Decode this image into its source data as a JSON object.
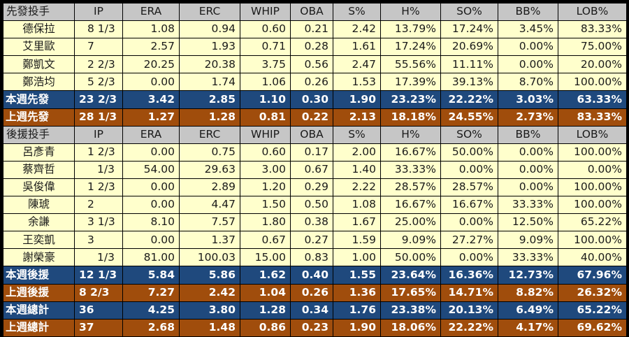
{
  "columns": [
    "IP",
    "ERA",
    "ERC",
    "WHIP",
    "OBA",
    "S%",
    "H%",
    "SO%",
    "BB%",
    "LOB%"
  ],
  "starters": {
    "header": "先發投手",
    "rows": [
      {
        "name": "德保拉",
        "ip": "8 1/3",
        "era": "1.08",
        "erc": "0.94",
        "whip": "0.60",
        "oba": "0.21",
        "s": "2.42",
        "h": "13.79%",
        "so": "17.24%",
        "bb": "3.45%",
        "lob": "83.33%"
      },
      {
        "name": "艾里歐",
        "ip": "7",
        "era": "2.57",
        "erc": "1.93",
        "whip": "0.71",
        "oba": "0.28",
        "s": "1.61",
        "h": "17.24%",
        "so": "20.69%",
        "bb": "0.00%",
        "lob": "75.00%"
      },
      {
        "name": "鄭凱文",
        "ip": "2 2/3",
        "era": "20.25",
        "erc": "20.38",
        "whip": "3.75",
        "oba": "0.56",
        "s": "2.47",
        "h": "55.56%",
        "so": "11.11%",
        "bb": "0.00%",
        "lob": "20.00%"
      },
      {
        "name": "鄭浩均",
        "ip": "5 2/3",
        "era": "0.00",
        "erc": "1.74",
        "whip": "1.06",
        "oba": "0.26",
        "s": "1.53",
        "h": "17.39%",
        "so": "39.13%",
        "bb": "8.70%",
        "lob": "100.00%"
      }
    ],
    "this_week": {
      "name": "本週先發",
      "ip": "23 2/3",
      "era": "3.42",
      "erc": "2.85",
      "whip": "1.10",
      "oba": "0.30",
      "s": "1.90",
      "h": "23.23%",
      "so": "22.22%",
      "bb": "3.03%",
      "lob": "63.33%"
    },
    "last_week": {
      "name": "上週先發",
      "ip": "28 1/3",
      "era": "1.27",
      "erc": "1.28",
      "whip": "0.81",
      "oba": "0.22",
      "s": "2.13",
      "h": "18.18%",
      "so": "24.55%",
      "bb": "2.73%",
      "lob": "83.33%"
    }
  },
  "relievers": {
    "header": "後援投手",
    "rows": [
      {
        "name": "呂彥青",
        "ip": "1 2/3",
        "era": "0.00",
        "erc": "0.75",
        "whip": "0.60",
        "oba": "0.17",
        "s": "2.00",
        "h": "16.67%",
        "so": "50.00%",
        "bb": "0.00%",
        "lob": "100.00%"
      },
      {
        "name": "蔡齊哲",
        "ip": "1/3",
        "era": "54.00",
        "erc": "29.63",
        "whip": "3.00",
        "oba": "0.67",
        "s": "1.40",
        "h": "33.33%",
        "so": "0.00%",
        "bb": "0.00%",
        "lob": "0.00%"
      },
      {
        "name": "吳俊偉",
        "ip": "1 2/3",
        "era": "0.00",
        "erc": "2.89",
        "whip": "1.20",
        "oba": "0.29",
        "s": "2.22",
        "h": "28.57%",
        "so": "28.57%",
        "bb": "0.00%",
        "lob": "100.00%"
      },
      {
        "name": "陳琥",
        "ip": "2",
        "era": "0.00",
        "erc": "4.47",
        "whip": "1.50",
        "oba": "0.50",
        "s": "1.08",
        "h": "16.67%",
        "so": "16.67%",
        "bb": "33.33%",
        "lob": "100.00%"
      },
      {
        "name": "余謙",
        "ip": "3 1/3",
        "era": "8.10",
        "erc": "7.57",
        "whip": "1.80",
        "oba": "0.38",
        "s": "1.67",
        "h": "25.00%",
        "so": "0.00%",
        "bb": "12.50%",
        "lob": "65.22%"
      },
      {
        "name": "王奕凱",
        "ip": "3",
        "era": "0.00",
        "erc": "1.37",
        "whip": "0.67",
        "oba": "0.27",
        "s": "1.59",
        "h": "9.09%",
        "so": "27.27%",
        "bb": "9.09%",
        "lob": "100.00%"
      },
      {
        "name": "謝榮豪",
        "ip": "1/3",
        "era": "81.00",
        "erc": "100.03",
        "whip": "15.00",
        "oba": "0.83",
        "s": "1.00",
        "h": "50.00%",
        "so": "0.00%",
        "bb": "33.33%",
        "lob": "40.00%"
      }
    ],
    "this_week": {
      "name": "本週後援",
      "ip": "12 1/3",
      "era": "5.84",
      "erc": "5.86",
      "whip": "1.62",
      "oba": "0.40",
      "s": "1.55",
      "h": "23.64%",
      "so": "16.36%",
      "bb": "12.73%",
      "lob": "67.96%"
    },
    "last_week": {
      "name": "上週後援",
      "ip": "8 2/3",
      "era": "7.27",
      "erc": "2.42",
      "whip": "1.04",
      "oba": "0.26",
      "s": "1.36",
      "h": "17.65%",
      "so": "14.71%",
      "bb": "8.82%",
      "lob": "26.32%"
    }
  },
  "totals": {
    "this_week": {
      "name": "本週總計",
      "ip": "36",
      "era": "4.25",
      "erc": "3.80",
      "whip": "1.28",
      "oba": "0.34",
      "s": "1.76",
      "h": "23.38%",
      "so": "20.13%",
      "bb": "6.49%",
      "lob": "65.22%"
    },
    "last_week": {
      "name": "上週總計",
      "ip": "37",
      "era": "2.68",
      "erc": "1.48",
      "whip": "0.86",
      "oba": "0.23",
      "s": "1.90",
      "h": "18.06%",
      "so": "22.22%",
      "bb": "4.17%",
      "lob": "69.62%"
    }
  },
  "colors": {
    "header_bg": "#c6c6c6",
    "player_bg": "#ffffcc",
    "this_week_bg": "#1f497d",
    "last_week_bg": "#a04d0c",
    "border": "#000000"
  }
}
